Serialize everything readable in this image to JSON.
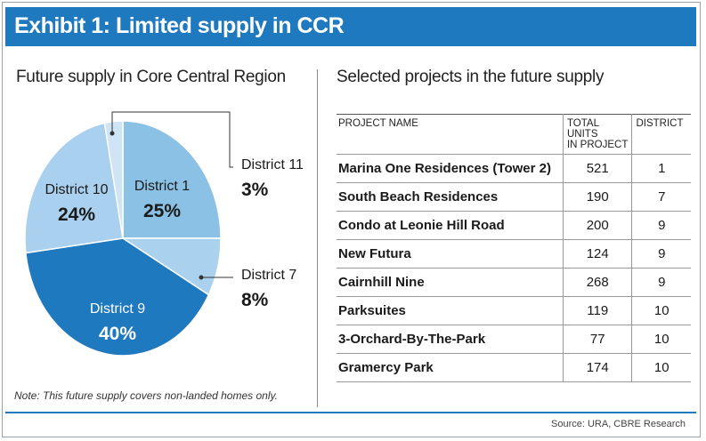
{
  "header": {
    "title": "Exhibit 1: Limited supply in CCR"
  },
  "left": {
    "subtitle": "Future supply in Core Central Region"
  },
  "right": {
    "subtitle": "Selected projects in the future supply"
  },
  "note": "Note: This future supply covers non-landed homes only.",
  "source": "Source: URA, CBRE Research",
  "colors": {
    "banner": "#1f79bf",
    "district_1": "#8cc1e6",
    "district_7": "#aad2ef",
    "district_9": "#1f79bf",
    "district_10": "#a9d0ee",
    "district_11": "#cfe4f5"
  },
  "chart_data": [
    {
      "type": "pie",
      "title": "Future supply in Core Central Region",
      "slices": [
        {
          "label": "District 1",
          "value": 25,
          "display": "25%"
        },
        {
          "label": "District 7",
          "value": 8,
          "display": "8%"
        },
        {
          "label": "District 9",
          "value": 40,
          "display": "40%"
        },
        {
          "label": "District 10",
          "value": 24,
          "display": "24%"
        },
        {
          "label": "District 11",
          "value": 3,
          "display": "3%"
        }
      ]
    },
    {
      "type": "table",
      "title": "Selected projects in the future supply",
      "columns": [
        "PROJECT NAME",
        "TOTAL UNITS IN PROJECT",
        "DISTRICT"
      ],
      "column_lines": [
        [
          "PROJECT NAME"
        ],
        [
          "TOTAL UNITS",
          "IN PROJECT"
        ],
        [
          "DISTRICT"
        ]
      ],
      "rows": [
        [
          "Marina One Residences (Tower 2)",
          "521",
          "1"
        ],
        [
          "South Beach Residences",
          "190",
          "7"
        ],
        [
          "Condo at Leonie Hill Road",
          "200",
          "9"
        ],
        [
          "New Futura",
          "124",
          "9"
        ],
        [
          "Cairnhill Nine",
          "268",
          "9"
        ],
        [
          "Parksuites",
          "119",
          "10"
        ],
        [
          "3-Orchard-By-The-Park",
          "77",
          "10"
        ],
        [
          "Gramercy Park",
          "174",
          "10"
        ]
      ]
    }
  ]
}
